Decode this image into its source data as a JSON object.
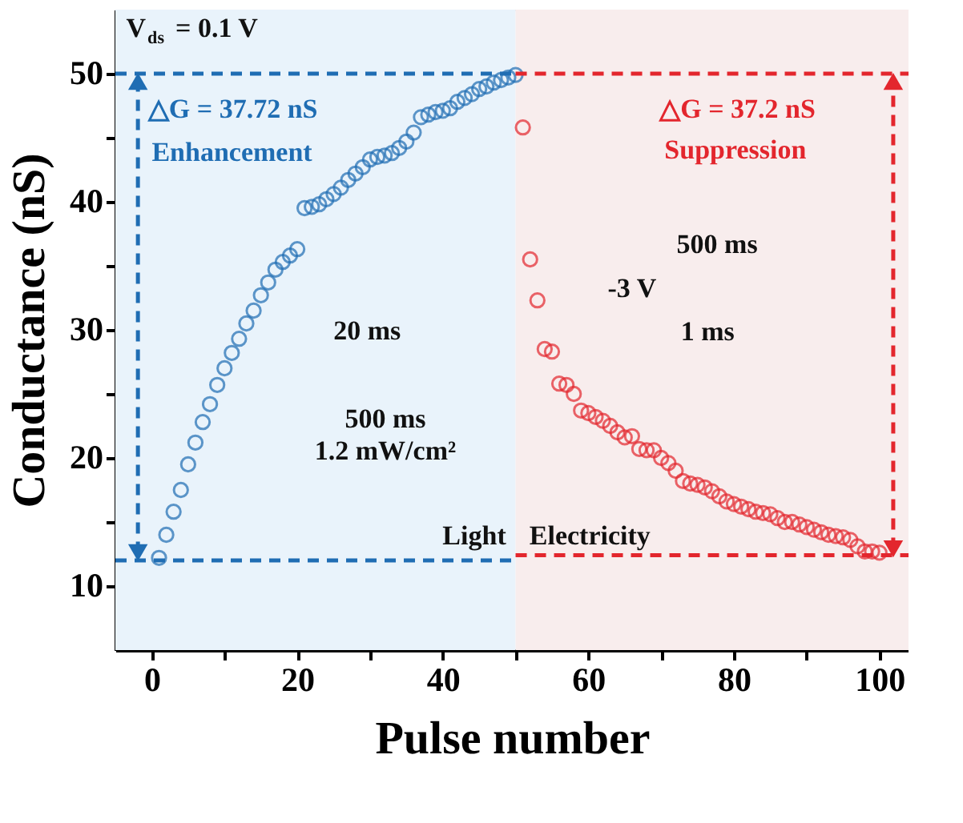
{
  "chart_data": {
    "type": "scatter",
    "xlabel": "Pulse number",
    "ylabel": "Conductance (nS)",
    "xlim": [
      -5,
      104
    ],
    "ylim": [
      5,
      55
    ],
    "xticks": [
      0,
      {
        "value": 10,
        "label": null
      },
      20,
      {
        "value": 30,
        "label": null
      },
      40,
      {
        "value": 50,
        "label": null
      },
      60,
      {
        "value": 70,
        "label": null
      },
      80,
      {
        "value": 90,
        "label": null
      },
      100
    ],
    "yticks": [
      10,
      {
        "value": 15,
        "label": null
      },
      20,
      {
        "value": 25,
        "label": null
      },
      30,
      {
        "value": 35,
        "label": null
      },
      40,
      {
        "value": 45,
        "label": null
      },
      50
    ],
    "grid": false,
    "marker": "circle",
    "bands": [
      {
        "axis": "x",
        "from": -5,
        "to": 50,
        "color": "#e9f3fb"
      },
      {
        "axis": "x",
        "from": 50,
        "to": 104,
        "color": "#f8eded"
      }
    ],
    "series": [
      {
        "color": "#1f6db3",
        "x": [
          1,
          2,
          3,
          4,
          5,
          6,
          7,
          8,
          9,
          10,
          11,
          12,
          13,
          14,
          15,
          16,
          17,
          18,
          19,
          20,
          21,
          22,
          23,
          24,
          25,
          26,
          27,
          28,
          29,
          30,
          31,
          32,
          33,
          34,
          35,
          36,
          37,
          38,
          39,
          40,
          41,
          42,
          43,
          44,
          45,
          46,
          47,
          48,
          49,
          50
        ],
        "values": [
          12.2,
          14.0,
          15.8,
          17.5,
          19.5,
          21.2,
          22.8,
          24.2,
          25.7,
          27.0,
          28.2,
          29.3,
          30.5,
          31.5,
          32.7,
          33.7,
          34.7,
          35.3,
          35.8,
          36.3,
          39.5,
          39.6,
          39.8,
          40.2,
          40.6,
          41.1,
          41.7,
          42.2,
          42.7,
          43.3,
          43.5,
          43.6,
          43.8,
          44.2,
          44.7,
          45.4,
          46.6,
          46.8,
          47.0,
          47.1,
          47.3,
          47.8,
          48.1,
          48.4,
          48.8,
          49.0,
          49.3,
          49.5,
          49.7,
          49.9
        ]
      },
      {
        "color": "#e3262d",
        "x": [
          51,
          52,
          53,
          54,
          55,
          56,
          57,
          58,
          59,
          60,
          61,
          62,
          63,
          64,
          65,
          66,
          67,
          68,
          69,
          70,
          71,
          72,
          73,
          74,
          75,
          76,
          77,
          78,
          79,
          80,
          81,
          82,
          83,
          84,
          85,
          86,
          87,
          88,
          89,
          90,
          91,
          92,
          93,
          94,
          95,
          96,
          97,
          98,
          99,
          100
        ],
        "values": [
          45.8,
          35.5,
          32.3,
          28.5,
          28.3,
          25.8,
          25.7,
          25.0,
          23.7,
          23.5,
          23.2,
          22.9,
          22.5,
          22.0,
          21.6,
          21.7,
          20.7,
          20.6,
          20.6,
          20.0,
          19.6,
          19.0,
          18.2,
          18.0,
          17.9,
          17.7,
          17.4,
          17.0,
          16.6,
          16.4,
          16.2,
          16.0,
          15.8,
          15.7,
          15.6,
          15.3,
          15.0,
          15.0,
          14.8,
          14.6,
          14.4,
          14.2,
          14.0,
          13.9,
          13.8,
          13.6,
          13.1,
          12.7,
          12.7,
          12.6
        ]
      },
      {
        "type": "line",
        "color": "#1f6db3",
        "line_style": "dashed",
        "marker": "none",
        "x": [
          -5,
          50
        ],
        "values": [
          50.0,
          50.0
        ]
      },
      {
        "type": "line",
        "color": "#1f6db3",
        "line_style": "dashed",
        "marker": "none",
        "x": [
          -5,
          50
        ],
        "values": [
          12.0,
          12.0
        ]
      },
      {
        "type": "line",
        "color": "#e3262d",
        "line_style": "dashed",
        "marker": "none",
        "x": [
          50,
          104
        ],
        "values": [
          50.0,
          50.0
        ]
      },
      {
        "type": "line",
        "color": "#e3262d",
        "line_style": "dashed",
        "marker": "none",
        "x": [
          50,
          104
        ],
        "values": [
          12.4,
          12.4
        ]
      },
      {
        "type": "line",
        "color": "#1f6db3",
        "line_style": "dashed",
        "marker": "triangle",
        "x": [
          -1.9,
          -1.9
        ],
        "values": [
          12.6,
          49.4
        ]
      },
      {
        "type": "line",
        "color": "#e3262d",
        "line_style": "dashed",
        "marker": "triangle",
        "x": [
          101.9,
          101.9
        ],
        "values": [
          12.9,
          49.4
        ]
      }
    ],
    "annotations": [
      "V$_{ds}$ = 0.1 V",
      "△G = 37.72 nS",
      "Enhancement",
      "△G = 37.2 nS",
      "Suppression",
      "500 ms",
      "-3 V",
      "1 ms",
      "20 ms",
      "500 ms",
      "1.2 mW/cm²",
      "Light",
      "Electricity"
    ]
  }
}
